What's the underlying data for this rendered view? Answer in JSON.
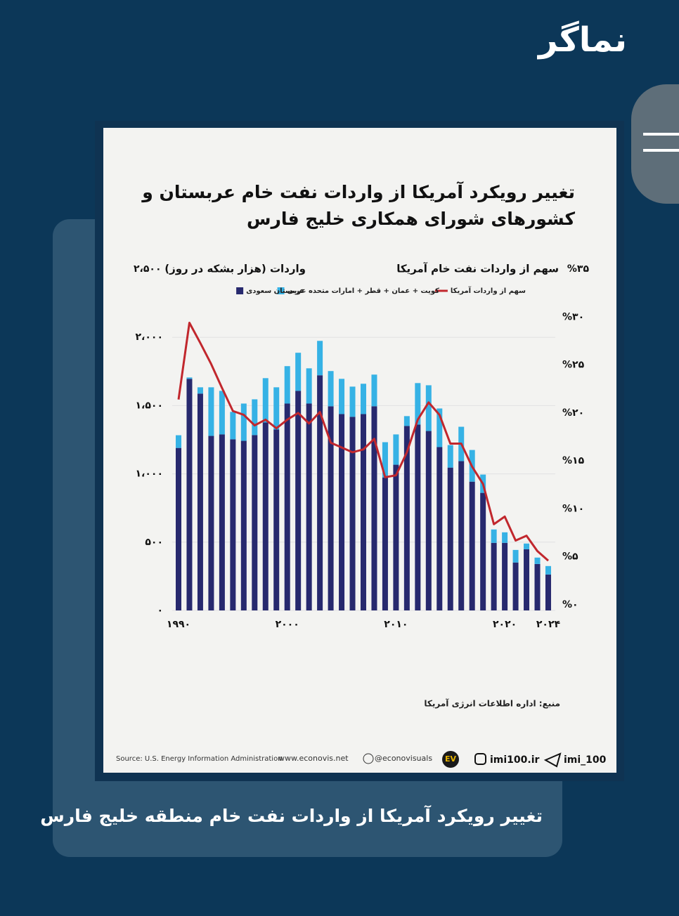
{
  "page": {
    "logo": "نماگر",
    "caption": "تغییر رویکرد آمریکا از واردات نفت خام منطقه خلیج فارس",
    "footer": {
      "source": "Source: U.S. Energy Information Administration",
      "site": "www.econovis.net",
      "x_handle": "@econovisuals",
      "ev": "EV",
      "instagram": "imi100.ir",
      "telegram": "imi_100"
    }
  },
  "chart_data": {
    "type": "bar",
    "stacked": true,
    "title": [
      "تغییر رویکرد آمریکا از واردات نفت خام عربستان و",
      "کشورهای شورای همکاری خلیج فارس"
    ],
    "ylabel": "واردات (هزار بشکه در روز)",
    "y2label": "سهم از واردات نفت خام آمریکا",
    "source_note": "منبع: اداره اطلاعات انرژی آمریکا",
    "categories": [
      "۱۹۹۰",
      null,
      null,
      null,
      null,
      null,
      null,
      null,
      null,
      null,
      "۲۰۰۰",
      null,
      null,
      null,
      null,
      null,
      null,
      null,
      null,
      null,
      "۲۰۱۰",
      null,
      null,
      null,
      null,
      null,
      null,
      null,
      null,
      null,
      "۲۰۲۰",
      null,
      null,
      null,
      "۲۰۲۴"
    ],
    "series": [
      {
        "name": "عربستان سعودی",
        "color": "#27296e",
        "values": [
          1190,
          1696,
          1588,
          1278,
          1289,
          1253,
          1242,
          1284,
          1376,
          1325,
          1515,
          1608,
          1515,
          1722,
          1495,
          1438,
          1418,
          1438,
          1495,
          974,
          1067,
          1351,
          1361,
          1314,
          1196,
          1046,
          1093,
          943,
          861,
          495,
          495,
          351,
          448,
          340,
          263
        ]
      },
      {
        "name": "کویت + عمان + قطر + امارات متحده عربی",
        "color": "#36b2e5",
        "values": [
          93,
          10,
          46,
          356,
          319,
          201,
          273,
          262,
          325,
          309,
          274,
          279,
          258,
          252,
          258,
          258,
          221,
          222,
          232,
          258,
          222,
          72,
          304,
          335,
          283,
          165,
          252,
          232,
          134,
          98,
          77,
          92,
          42,
          47,
          62
        ]
      },
      {
        "name": "سهم از واردات آمریکا",
        "color": "#c1272d",
        "type": "line",
        "axis": "y2",
        "values": [
          21.4,
          29.4,
          27.3,
          25.1,
          22.6,
          20.2,
          19.8,
          18.7,
          19.3,
          18.4,
          19.3,
          20.0,
          18.9,
          20.1,
          16.9,
          16.4,
          15.9,
          16.2,
          17.3,
          13.3,
          13.5,
          15.9,
          19.3,
          21.1,
          19.8,
          16.8,
          16.8,
          14.4,
          12.6,
          8.4,
          9.2,
          6.7,
          7.2,
          5.6,
          4.6
        ]
      }
    ],
    "ylim": [
      0,
      2500
    ],
    "yticks": [
      {
        "value": 0,
        "label": "۰"
      },
      {
        "value": 500,
        "label": "۵۰۰"
      },
      {
        "value": 1000,
        "label": "۱،۰۰۰"
      },
      {
        "value": 1500,
        "label": "۱،۵۰۰"
      },
      {
        "value": 2000,
        "label": "۲،۰۰۰"
      },
      {
        "value": 2500,
        "label": "۲،۵۰۰"
      }
    ],
    "y2lim": [
      0,
      35
    ],
    "y2ticks": [
      {
        "value": 0,
        "label": "%۰"
      },
      {
        "value": 5,
        "label": "%۵"
      },
      {
        "value": 10,
        "label": "%۱۰"
      },
      {
        "value": 15,
        "label": "%۱۵"
      },
      {
        "value": 20,
        "label": "%۲۰"
      },
      {
        "value": 25,
        "label": "%۲۵"
      },
      {
        "value": 30,
        "label": "%۳۰"
      },
      {
        "value": 35,
        "label": "%۳۵"
      }
    ],
    "grid": true
  }
}
